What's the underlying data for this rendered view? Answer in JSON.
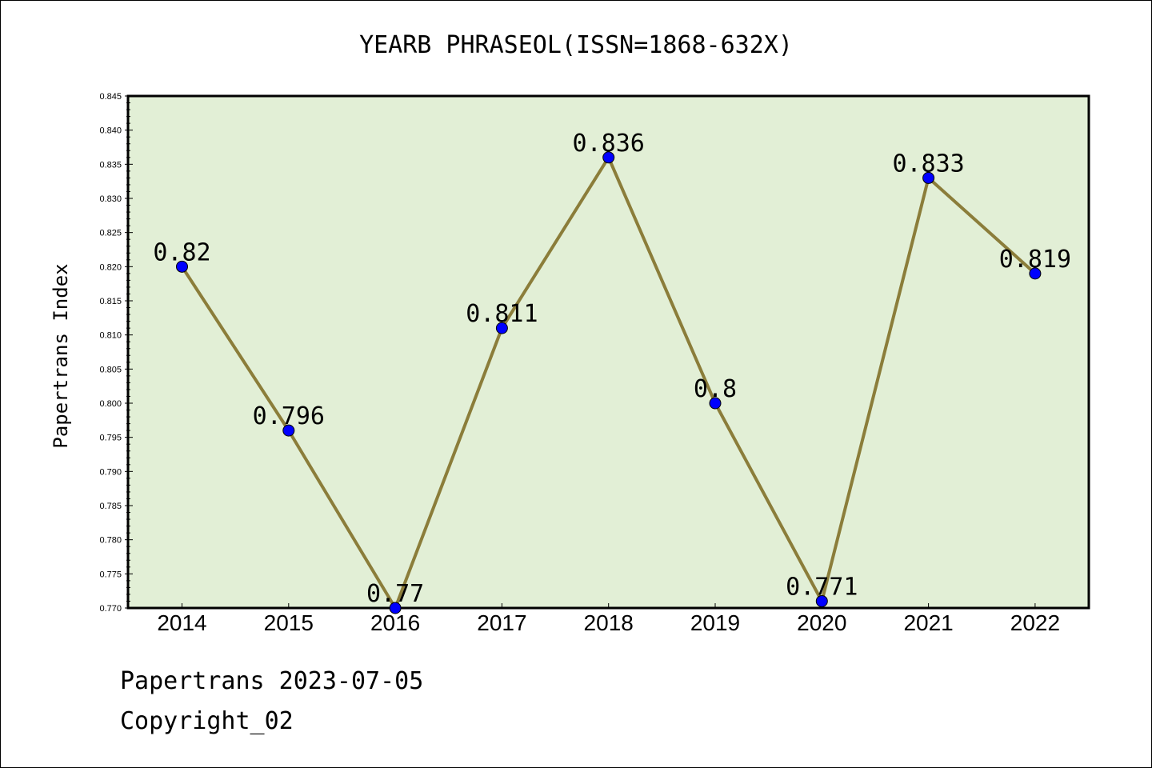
{
  "chart_data": {
    "type": "line",
    "title": "YEARB PHRASEOL(ISSN=1868-632X)",
    "ylabel": "Papertrans Index",
    "xlabel": "",
    "categories": [
      "2014",
      "2015",
      "2016",
      "2017",
      "2018",
      "2019",
      "2020",
      "2021",
      "2022"
    ],
    "series": [
      {
        "values": [
          0.82,
          0.796,
          0.77,
          0.811,
          0.836,
          0.8,
          0.771,
          0.833,
          0.819
        ]
      }
    ],
    "data_labels": [
      "0.82",
      "0.796",
      "0.77",
      "0.811",
      "0.836",
      "0.8",
      "0.771",
      "0.833",
      "0.819"
    ],
    "ylim": [
      0.77,
      0.845
    ],
    "yticks": [
      "0.770",
      "0.775",
      "0.780",
      "0.785",
      "0.790",
      "0.795",
      "0.800",
      "0.805",
      "0.810",
      "0.815",
      "0.820",
      "0.825",
      "0.830",
      "0.835",
      "0.840",
      "0.845"
    ],
    "grid": false,
    "legend": "none",
    "colors": {
      "plot_bg": "#e2efd6",
      "line": "#8b7d3a",
      "marker": "#0000ff"
    }
  },
  "footer": {
    "line1": "Papertrans 2023-07-05",
    "line2": "Copyright_02"
  }
}
